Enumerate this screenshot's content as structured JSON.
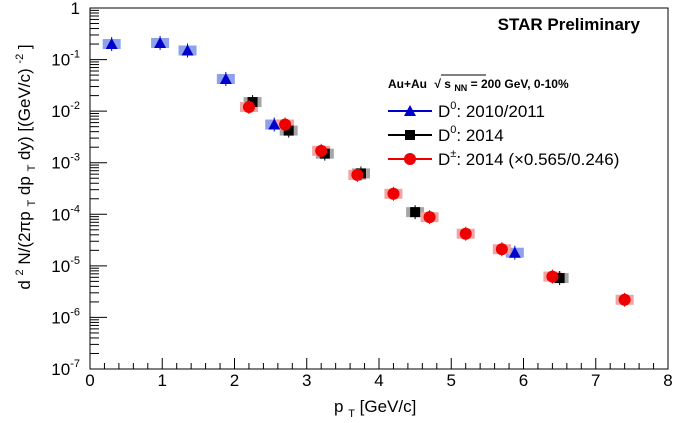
{
  "chart_data": {
    "type": "scatter",
    "title": "STAR Preliminary",
    "legend_header": "Au+Au √s_NN = 200 GeV, 0-10%",
    "legend_header_parts": {
      "system": "Au+Au",
      "sqrt_symbol": "√",
      "s": "s",
      "s_subscript": "NN",
      "rest": " = 200 GeV, 0-10%"
    },
    "xlabel": "p_T [GeV/c]",
    "xlabel_parts": {
      "main": "p",
      "sub": "T",
      "unit": " [GeV/c]"
    },
    "ylabel": "d²N/(2πp_T dp_T dy) [(GeV/c)⁻²]",
    "ylabel_parts": {
      "d1": "d",
      "sup2": "2",
      "n_open": "N/(2πp",
      "sub_t1": "T",
      "dp": "dp",
      "sub_t2": "T",
      "dy": "dy) [(GeV/c)",
      "sup_neg2": "-2",
      "close": "]"
    },
    "xlim": [
      0,
      8
    ],
    "ylim": [
      1e-07,
      1
    ],
    "yscale": "log",
    "grid": false,
    "legend_position": "top-right",
    "x_ticks": [
      "0",
      "1",
      "2",
      "3",
      "4",
      "5",
      "6",
      "7",
      "8"
    ],
    "y_ticks": [
      {
        "base": "10",
        "exp": "-7"
      },
      {
        "base": "10",
        "exp": "-6"
      },
      {
        "base": "10",
        "exp": "-5"
      },
      {
        "base": "10",
        "exp": "-4"
      },
      {
        "base": "10",
        "exp": "-3"
      },
      {
        "base": "10",
        "exp": "-2"
      },
      {
        "base": "10",
        "exp": "-1"
      },
      {
        "base": "1",
        "exp": ""
      }
    ],
    "series": [
      {
        "name": "D⁰: 2010/2011",
        "label_parts": {
          "base": "D",
          "sup": "0",
          "rest": ": 2010/2011"
        },
        "marker": "triangle",
        "color": "#0000cc",
        "syst_color": "#8ea2ec",
        "x": [
          0.3,
          0.97,
          1.35,
          1.88,
          2.55,
          5.88
        ],
        "y": [
          0.2,
          0.21,
          0.15,
          0.042,
          0.0055,
          1.8e-05
        ]
      },
      {
        "name": "D⁰: 2014",
        "label_parts": {
          "base": "D",
          "sup": "0",
          "rest": ": 2014"
        },
        "marker": "square",
        "color": "#000000",
        "syst_color": "#a6a6a6",
        "x": [
          2.25,
          2.75,
          3.25,
          3.75,
          4.5,
          6.5
        ],
        "y": [
          0.015,
          0.0042,
          0.0015,
          0.00062,
          0.00011,
          5.8e-06
        ]
      },
      {
        "name": "D±: 2014 (×0.565/0.246)",
        "label_parts": {
          "base": "D",
          "sup": "±",
          "rest": ": 2014 (×0.565/0.246)"
        },
        "marker": "circle",
        "color": "#ee0000",
        "syst_color": "#f2a3a3",
        "x": [
          2.2,
          2.7,
          3.2,
          3.7,
          4.2,
          4.7,
          5.2,
          5.7,
          6.4,
          7.4
        ],
        "y": [
          0.012,
          0.0055,
          0.0017,
          0.00058,
          0.00025,
          8.8e-05,
          4.2e-05,
          2.1e-05,
          6.2e-06,
          2.2e-06
        ]
      }
    ]
  }
}
